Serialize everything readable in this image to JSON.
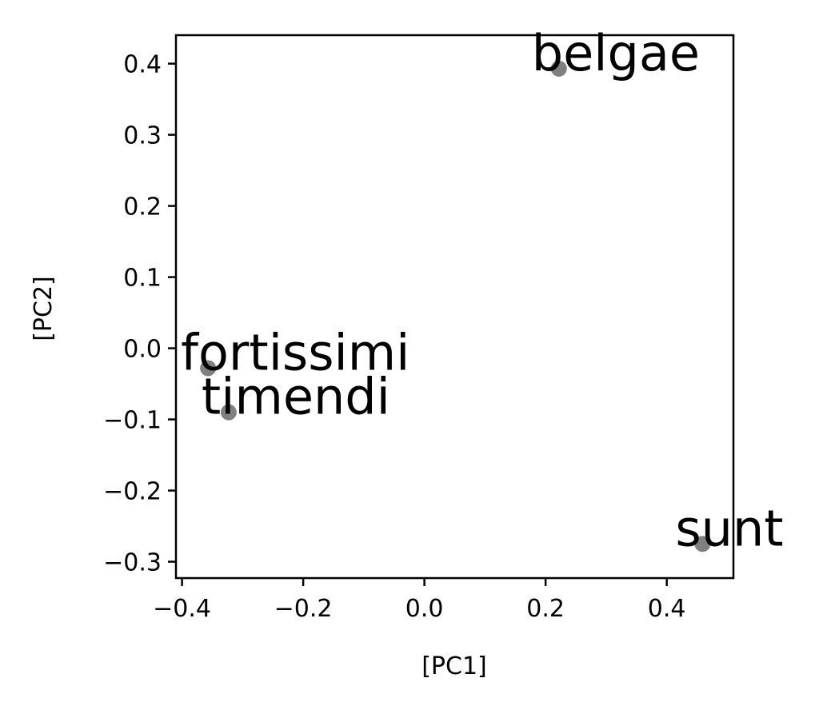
{
  "chart_data": {
    "type": "scatter",
    "xlabel": "[PC1]",
    "ylabel": "[PC2]",
    "xlim": [
      -0.41,
      0.51
    ],
    "ylim": [
      -0.323,
      0.44
    ],
    "x_ticks": [
      -0.4,
      -0.2,
      0.0,
      0.2,
      0.4
    ],
    "x_tick_labels": [
      "−0.4",
      "−0.2",
      "0.0",
      "0.2",
      "0.4"
    ],
    "y_ticks": [
      0.4,
      0.3,
      0.2,
      0.1,
      0.0,
      -0.1,
      -0.2,
      -0.3
    ],
    "y_tick_labels": [
      "0.4",
      "0.3",
      "0.2",
      "0.1",
      "0.0",
      "−0.1",
      "−0.2",
      "−0.3"
    ],
    "grid": false,
    "point_color": "#808080",
    "points": [
      {
        "label": "belgae",
        "x": 0.222,
        "y": 0.393
      },
      {
        "label": "fortissimi",
        "x": -0.357,
        "y": -0.028
      },
      {
        "label": "timendi",
        "x": -0.323,
        "y": -0.09
      },
      {
        "label": "sunt",
        "x": 0.459,
        "y": -0.275
      }
    ]
  }
}
